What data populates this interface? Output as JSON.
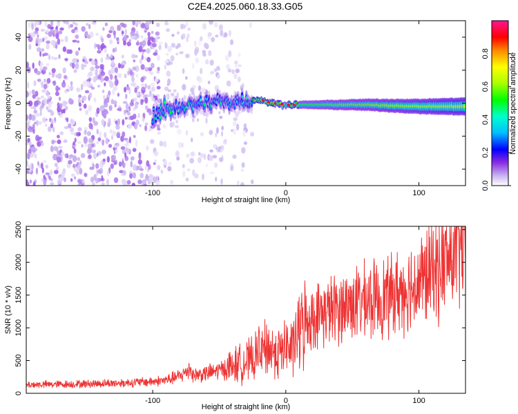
{
  "title": "C2E4.2025.060.18.33.G05",
  "colors": {
    "snr_line": "#ee3333",
    "frame": "#000000"
  },
  "chart_data": [
    {
      "type": "heatmap",
      "xlabel": "Height of straight line (km)",
      "ylabel": "Frequency (Hz)",
      "xlim": [
        -195,
        135
      ],
      "ylim": [
        -50,
        50
      ],
      "xticks": [
        -100,
        0,
        100
      ],
      "yticks": [
        -40,
        -20,
        0,
        20,
        40
      ],
      "colorbar": {
        "label": "Normalized spectral amplitude",
        "range": [
          0,
          1
        ],
        "ticks": [
          0.0,
          0.2,
          0.4,
          0.6,
          0.8
        ],
        "colormap": [
          "#ffffff",
          "#c8b4f0",
          "#8a2be2",
          "#0000ff",
          "#00bfff",
          "#00ffcc",
          "#00ff00",
          "#aaff00",
          "#ffff00",
          "#ff8800",
          "#ff0000",
          "#ff1493"
        ]
      },
      "ridge": {
        "x": [
          -100,
          -80,
          -60,
          -40,
          -25,
          -20,
          -10,
          0,
          20,
          60,
          100,
          135
        ],
        "y": [
          -7,
          -2,
          0,
          1,
          2,
          2,
          0,
          -1,
          -1,
          -1,
          -2,
          -2
        ]
      },
      "grid": false
    },
    {
      "type": "line",
      "xlabel": "Height of straight line (km)",
      "ylabel": "SNR (10 * v/v)",
      "xlim": [
        -195,
        135
      ],
      "ylim": [
        0,
        2550
      ],
      "xticks": [
        -100,
        0,
        100
      ],
      "yticks": [
        0,
        500,
        1000,
        1500,
        2000,
        2500
      ],
      "series": [
        {
          "x": [
            -195,
            -180,
            -160,
            -140,
            -120,
            -100,
            -90,
            -80,
            -75,
            -72,
            -70,
            -60,
            -50,
            -40,
            -30,
            -20,
            -15,
            -10,
            -5,
            0,
            5,
            10,
            15,
            20,
            30,
            40,
            50,
            60,
            70,
            80,
            90,
            100,
            110,
            120,
            130,
            135
          ],
          "y": [
            130,
            135,
            140,
            150,
            160,
            180,
            200,
            260,
            320,
            400,
            280,
            300,
            350,
            420,
            480,
            560,
            700,
            650,
            620,
            700,
            680,
            950,
            1100,
            1150,
            1250,
            1300,
            1380,
            1400,
            1450,
            1500,
            1600,
            1700,
            1850,
            2000,
            2200,
            2300
          ]
        }
      ],
      "grid": false
    }
  ]
}
